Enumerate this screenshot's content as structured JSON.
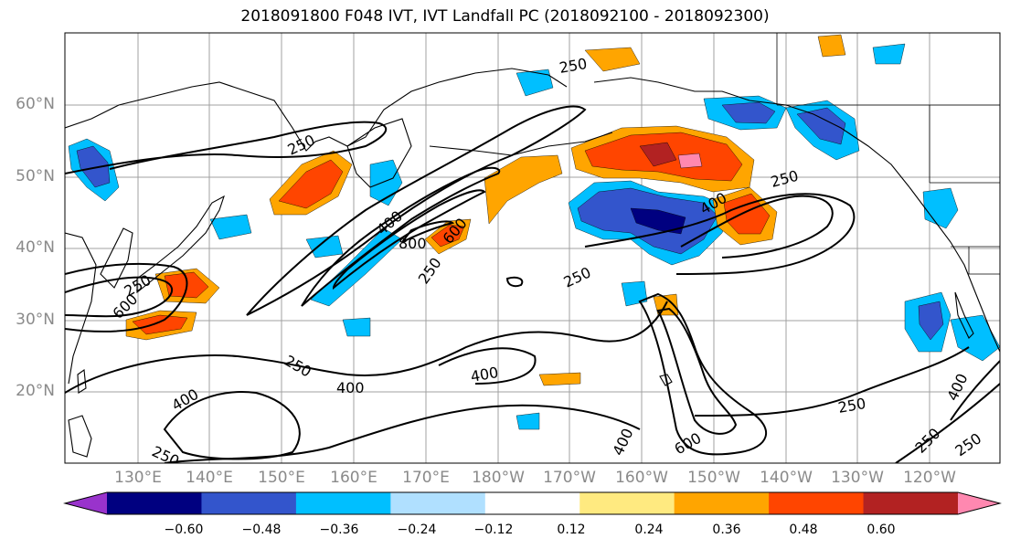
{
  "title": "2018091800 F048 IVT, IVT Landfall PC (2018092100 - 2018092300)",
  "lat_labels": [
    "60°N",
    "50°N",
    "40°N",
    "30°N",
    "20°N"
  ],
  "lon_labels": [
    "130°E",
    "140°E",
    "150°E",
    "160°E",
    "170°E",
    "180°W",
    "170°W",
    "160°W",
    "150°W",
    "140°W",
    "130°W",
    "120°W"
  ],
  "contour_labels": [
    "250",
    "250",
    "400",
    "800",
    "600",
    "250",
    "250",
    "400",
    "250",
    "250",
    "400",
    "400",
    "400",
    "250",
    "250",
    "400",
    "600",
    "250",
    "400",
    "250",
    "250",
    "600"
  ],
  "colorbar": {
    "ticks": [
      "−0.60",
      "−0.48",
      "−0.36",
      "−0.24",
      "−0.12",
      "0.12",
      "0.24",
      "0.36",
      "0.48",
      "0.60"
    ],
    "colors": [
      "#9933cc",
      "#000080",
      "#3355cc",
      "#00bfff",
      "#b0e0ff",
      "#ffffff",
      "#ffea80",
      "#ffa500",
      "#ff4500",
      "#b22222",
      "#ff88b0"
    ]
  },
  "colors": {
    "land_outline": "#000000",
    "grid": "#a0a0a0",
    "axis_label": "#8a8a8a"
  }
}
